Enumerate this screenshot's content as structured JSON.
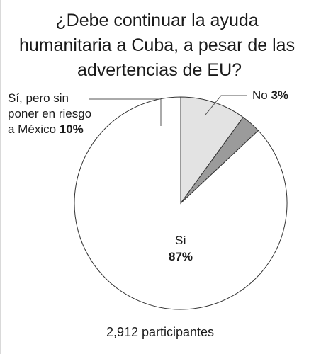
{
  "chart_data": {
    "type": "pie",
    "title": "¿Debe continuar la ayuda humanitaria a Cuba, a pesar de las advertencias de EU?",
    "title_lines": [
      "¿Debe continuar la ayuda",
      "humanitaria a Cuba, a pesar de las",
      "advertencias de EU?"
    ],
    "slices": [
      {
        "label": "Sí",
        "label_lines": [
          "Sí"
        ],
        "value": 87,
        "display": "87%",
        "color": "#ffffff"
      },
      {
        "label": "Sí, pero sin poner en riesgo a México",
        "label_lines": [
          "Sí, pero sin",
          "poner en riesgo",
          "a México"
        ],
        "value": 10,
        "display": "10%",
        "color": "#e3e3e3"
      },
      {
        "label": "No",
        "label_lines": [
          "No"
        ],
        "value": 3,
        "display": "3%",
        "color": "#9b9b9b"
      }
    ],
    "legend": "none",
    "grid": false,
    "footer": "2,912 participantes"
  }
}
